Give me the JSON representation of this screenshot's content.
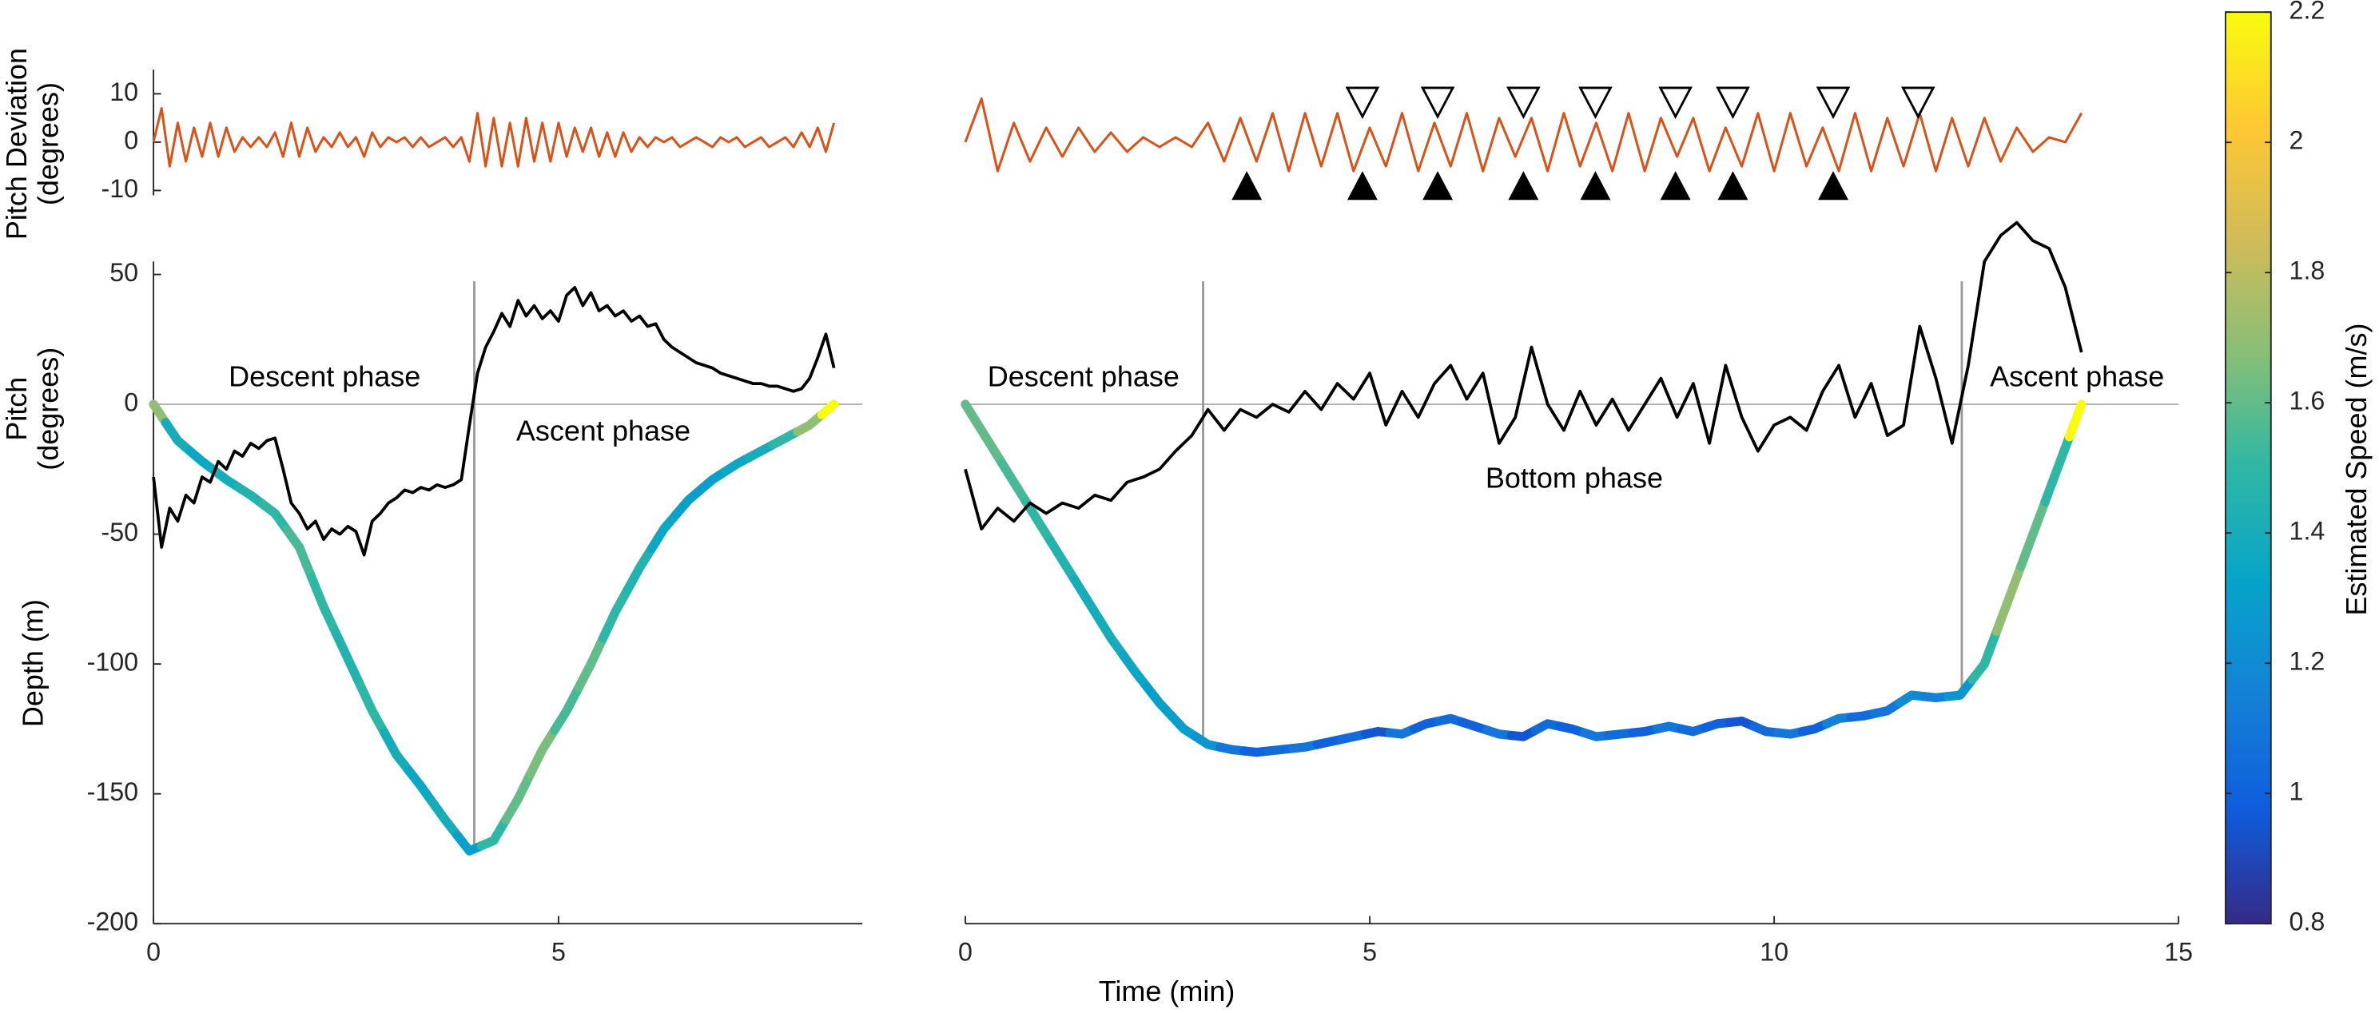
{
  "chart_data": [
    {
      "type": "line",
      "xlabel": "Time (min)",
      "ylabel_dev": [
        "Pitch Deviation",
        "(degrees)"
      ],
      "ylabel_pitch": [
        "Pitch",
        "(degrees)"
      ],
      "ylabel_depth": "Depth (m)",
      "xlim": [
        0,
        8.75
      ],
      "xticks": [
        0,
        5
      ],
      "ylim": [
        -200,
        55
      ],
      "yticks": [
        -200,
        -150,
        -100,
        -50,
        0,
        50
      ],
      "dev_ylim": [
        -11,
        15
      ],
      "dev_yticks": [
        -10,
        0,
        10
      ],
      "phase_boundaries": [
        3.96
      ],
      "annotations": [
        "Descent phase",
        "Ascent phase"
      ],
      "x": [
        0,
        0.1,
        0.2,
        0.3,
        0.4,
        0.5,
        0.6,
        0.7,
        0.8,
        0.9,
        1,
        1.1,
        1.2,
        1.3,
        1.4,
        1.5,
        1.6,
        1.7,
        1.8,
        1.9,
        2,
        2.1,
        2.2,
        2.3,
        2.4,
        2.5,
        2.6,
        2.7,
        2.8,
        2.9,
        3,
        3.1,
        3.2,
        3.3,
        3.4,
        3.5,
        3.6,
        3.7,
        3.8,
        3.9,
        4,
        4.1,
        4.2,
        4.3,
        4.4,
        4.5,
        4.6,
        4.7,
        4.8,
        4.9,
        5,
        5.1,
        5.2,
        5.3,
        5.4,
        5.5,
        5.6,
        5.7,
        5.8,
        5.9,
        6,
        6.1,
        6.2,
        6.3,
        6.4,
        6.5,
        6.6,
        6.7,
        6.8,
        6.9,
        7,
        7.1,
        7.2,
        7.3,
        7.4,
        7.5,
        7.6,
        7.7,
        7.8,
        7.9,
        8,
        8.1,
        8.2,
        8.3,
        8.4
      ],
      "series": [
        {
          "axis": "deviation",
          "color": "#d95319",
          "values": [
            0,
            7,
            -5,
            4,
            -4,
            3,
            -3,
            4,
            -3,
            3,
            -2,
            1,
            -1,
            1,
            -1,
            2,
            -3,
            4,
            -3,
            3,
            -2,
            1,
            -1,
            2,
            -1,
            1,
            -3,
            2,
            -1,
            1,
            0,
            1,
            -1,
            1,
            -1,
            0,
            1,
            -1,
            1,
            -4,
            6,
            -5,
            5,
            -5,
            4,
            -5,
            5,
            -4,
            4,
            -4,
            4,
            -3,
            3,
            -2,
            3,
            -3,
            2,
            -3,
            2,
            -2,
            1,
            -1,
            1,
            0,
            1,
            -1,
            0,
            1,
            0,
            -1,
            1,
            0,
            1,
            -1,
            0,
            1,
            -1,
            0,
            1,
            -1,
            2,
            -1,
            3,
            -2,
            4
          ]
        },
        {
          "axis": "main",
          "color": "#000000",
          "values": [
            -28,
            -55,
            -40,
            -45,
            -35,
            -38,
            -28,
            -30,
            -22,
            -25,
            -18,
            -20,
            -15,
            -17,
            -14,
            -13,
            -25,
            -38,
            -42,
            -48,
            -45,
            -52,
            -48,
            -50,
            -47,
            -49,
            -58,
            -45,
            -42,
            -38,
            -36,
            -33,
            -34,
            -32,
            -33,
            -31,
            -32,
            -31,
            -29,
            -8,
            12,
            22,
            28,
            35,
            30,
            40,
            34,
            38,
            33,
            36,
            32,
            42,
            45,
            38,
            43,
            36,
            38,
            34,
            36,
            32,
            34,
            30,
            31,
            25,
            22,
            20,
            18,
            16,
            15,
            14,
            12,
            11,
            10,
            9,
            8,
            8,
            7,
            7,
            6,
            5,
            6,
            10,
            18,
            27,
            14
          ]
        },
        {
          "axis": "main",
          "x": [
            0,
            0.3,
            0.6,
            0.9,
            1.2,
            1.5,
            1.8,
            2.1,
            2.4,
            2.7,
            3,
            3.3,
            3.6,
            3.9,
            4.2,
            4.5,
            4.8,
            5.1,
            5.4,
            5.7,
            6,
            6.3,
            6.6,
            6.9,
            7.2,
            7.5,
            7.8,
            8.1,
            8.4
          ],
          "values": [
            0,
            -14,
            -22,
            -29,
            -35,
            -42,
            -55,
            -78,
            -98,
            -118,
            -135,
            -147,
            -160,
            -172,
            -168,
            -152,
            -133,
            -118,
            -100,
            -80,
            -63,
            -48,
            -37,
            -29,
            -23,
            -18,
            -13,
            -8,
            0
          ],
          "speed": [
            1.7,
            1.4,
            1.35,
            1.4,
            1.45,
            1.5,
            1.55,
            1.5,
            1.45,
            1.5,
            1.4,
            1.35,
            1.4,
            1.3,
            1.5,
            1.6,
            1.65,
            1.55,
            1.6,
            1.5,
            1.45,
            1.35,
            1.3,
            1.3,
            1.35,
            1.4,
            1.5,
            1.7,
            2.2
          ]
        }
      ]
    },
    {
      "type": "line",
      "xlim": [
        0,
        15
      ],
      "xticks": [
        0,
        5,
        10,
        15
      ],
      "ylim": [
        -200,
        55
      ],
      "dev_ylim": [
        -11,
        15
      ],
      "phase_boundaries": [
        2.94,
        12.32
      ],
      "annotations": [
        "Descent phase",
        "Bottom phase",
        "Ascent phase"
      ],
      "events_open": [
        4.91,
        5.84,
        6.9,
        7.79,
        8.78,
        9.49,
        10.73,
        11.78
      ],
      "events_filled": [
        3.48,
        4.91,
        5.84,
        6.9,
        7.79,
        8.78,
        9.49,
        10.73
      ],
      "x": [
        0,
        0.2,
        0.4,
        0.6,
        0.8,
        1,
        1.2,
        1.4,
        1.6,
        1.8,
        2,
        2.2,
        2.4,
        2.6,
        2.8,
        3,
        3.2,
        3.4,
        3.6,
        3.8,
        4,
        4.2,
        4.4,
        4.6,
        4.8,
        5,
        5.2,
        5.4,
        5.6,
        5.8,
        6,
        6.2,
        6.4,
        6.6,
        6.8,
        7,
        7.2,
        7.4,
        7.6,
        7.8,
        8,
        8.2,
        8.4,
        8.6,
        8.8,
        9,
        9.2,
        9.4,
        9.6,
        9.8,
        10,
        10.2,
        10.4,
        10.6,
        10.8,
        11,
        11.2,
        11.4,
        11.6,
        11.8,
        12,
        12.2,
        12.4,
        12.6,
        12.8,
        13,
        13.2,
        13.4,
        13.6,
        13.8
      ],
      "series": [
        {
          "axis": "deviation",
          "color": "#d95319",
          "values": [
            0,
            9,
            -6,
            4,
            -4,
            3,
            -3,
            3,
            -2,
            2,
            -2,
            1,
            -1,
            1,
            -1,
            4,
            -4,
            5,
            -4,
            6,
            -6,
            6,
            -5,
            6,
            -6,
            3,
            -5,
            6,
            -6,
            4,
            -5,
            6,
            -6,
            5,
            -3,
            5,
            -6,
            6,
            -5,
            4,
            -6,
            6,
            -6,
            5,
            -3,
            5,
            -6,
            3,
            -5,
            6,
            -6,
            6,
            -5,
            3,
            -6,
            6,
            -6,
            5,
            -5,
            6,
            -6,
            5,
            -5,
            5,
            -4,
            3,
            -2,
            1,
            0,
            6
          ]
        },
        {
          "axis": "main",
          "color": "#000000",
          "values": [
            -25,
            -48,
            -40,
            -45,
            -38,
            -42,
            -38,
            -40,
            -35,
            -37,
            -30,
            -28,
            -25,
            -18,
            -12,
            -2,
            -10,
            -2,
            -5,
            0,
            -3,
            5,
            -2,
            8,
            2,
            12,
            -8,
            5,
            -5,
            8,
            15,
            2,
            12,
            -15,
            -5,
            22,
            0,
            -10,
            5,
            -8,
            2,
            -10,
            0,
            10,
            -5,
            8,
            -15,
            15,
            -5,
            -18,
            -8,
            -5,
            -10,
            5,
            15,
            -5,
            8,
            -12,
            -8,
            30,
            10,
            -15,
            15,
            55,
            65,
            70,
            63,
            60,
            45,
            20
          ]
        },
        {
          "axis": "main",
          "x": [
            0,
            0.3,
            0.6,
            0.9,
            1.2,
            1.5,
            1.8,
            2.1,
            2.4,
            2.7,
            3,
            3.3,
            3.6,
            3.9,
            4.2,
            4.5,
            4.8,
            5.1,
            5.4,
            5.7,
            6,
            6.3,
            6.6,
            6.9,
            7.2,
            7.5,
            7.8,
            8.1,
            8.4,
            8.7,
            9,
            9.3,
            9.6,
            9.9,
            10.2,
            10.5,
            10.8,
            11.1,
            11.4,
            11.7,
            12,
            12.3,
            12.6,
            12.9,
            13.2,
            13.5,
            13.8
          ],
          "values": [
            0,
            -15,
            -30,
            -45,
            -60,
            -75,
            -90,
            -103,
            -115,
            -125,
            -131,
            -133,
            -134,
            -133,
            -132,
            -130,
            -128,
            -126,
            -127,
            -123,
            -121,
            -124,
            -127,
            -128,
            -123,
            -125,
            -128,
            -127,
            -126,
            -124,
            -126,
            -123,
            -122,
            -126,
            -127,
            -125,
            -121,
            -120,
            -118,
            -112,
            -113,
            -112,
            -100,
            -75,
            -50,
            -25,
            0
          ],
          "speed": [
            1.6,
            1.6,
            1.55,
            1.5,
            1.45,
            1.4,
            1.4,
            1.35,
            1.3,
            1.3,
            1.25,
            1.1,
            1.0,
            1.05,
            1.1,
            1.0,
            1.05,
            0.95,
            1.1,
            1.0,
            1.05,
            1.0,
            1.1,
            0.95,
            1.05,
            1.0,
            1.1,
            1.05,
            1.0,
            1.1,
            1.05,
            1.0,
            0.95,
            1.05,
            1.1,
            1.0,
            1.15,
            1.05,
            1.1,
            1.2,
            1.15,
            1.25,
            1.5,
            1.7,
            1.6,
            1.5,
            2.2
          ]
        }
      ],
      "colorbar": {
        "label": "Estimated Speed (m/s)",
        "lim": [
          0.8,
          2.2
        ],
        "ticks": [
          0.8,
          1,
          1.2,
          1.4,
          1.6,
          1.8,
          2,
          2.2
        ],
        "colormap": [
          "#352a87",
          "#0f5cdd",
          "#1481d6",
          "#06a4ca",
          "#2eb7a4",
          "#87bf77",
          "#d1bb59",
          "#fec832",
          "#f9fb0e"
        ]
      }
    }
  ]
}
